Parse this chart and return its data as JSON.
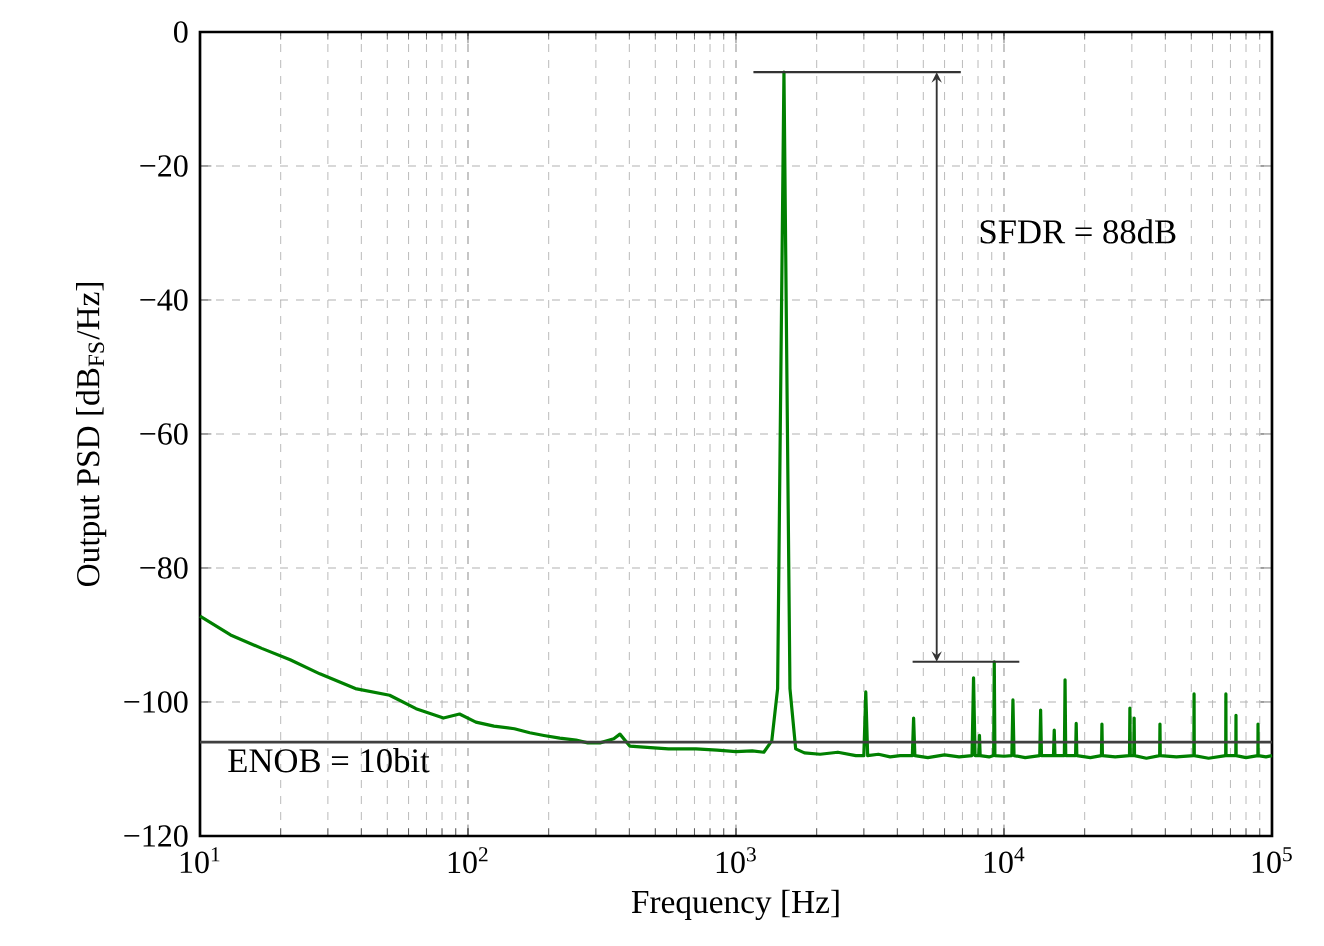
{
  "chart_data": {
    "type": "line",
    "xlabel": "Frequency [Hz]",
    "ylabel": "Output PSD [dB$_{FS}$/Hz]",
    "log": "x",
    "grid": true,
    "xlim": [
      10,
      100000
    ],
    "ylim": [
      -120,
      0
    ],
    "xticks": [
      {
        "value": 10,
        "label": "10$^{1}$"
      },
      {
        "value": 100,
        "label": "10$^{2}$"
      },
      {
        "value": 1000,
        "label": "10$^{3}$"
      },
      {
        "value": 10000,
        "label": "10$^{4}$"
      },
      {
        "value": 100000,
        "label": "10$^{5}$"
      }
    ],
    "yticks": [
      {
        "value": -120,
        "label": "−120"
      },
      {
        "value": -100,
        "label": "−100"
      },
      {
        "value": -80,
        "label": "−80"
      },
      {
        "value": -60,
        "label": "−60"
      },
      {
        "value": -40,
        "label": "−40"
      },
      {
        "value": -20,
        "label": "−20"
      },
      0
    ],
    "series": [
      {
        "color": "#008000",
        "x": [
          10,
          13,
          17,
          21.7,
          28,
          38,
          51,
          64,
          81,
          93,
          107,
          125,
          149,
          170,
          192,
          220,
          253,
          280,
          311,
          350,
          369,
          402,
          480,
          560,
          709,
          850,
          1000,
          1150,
          1270,
          1360,
          1430,
          1510,
          1590,
          1670,
          1800,
          2060,
          2400,
          2800,
          3000,
          3050,
          3100,
          3400,
          3760,
          4100,
          4550,
          4600,
          4650,
          5200,
          6000,
          6800,
          7600,
          7700,
          7800,
          8050,
          8100,
          8150,
          8800,
          9150,
          9200,
          9250,
          10000,
          10700,
          10800,
          10900,
          12000,
          13600,
          13700,
          13800,
          14500,
          15300,
          15400,
          15500,
          16800,
          16900,
          17000,
          18500,
          18600,
          18700,
          21000,
          23100,
          23200,
          23300,
          26000,
          29400,
          29500,
          29600,
          30500,
          30600,
          30700,
          34000,
          38100,
          38200,
          38300,
          44000,
          51100,
          51200,
          51300,
          58000,
          67200,
          67300,
          67400,
          73300,
          73400,
          73500,
          80000,
          88600,
          88700,
          88800,
          95000,
          100000
        ],
        "values": [
          -87.2,
          -90,
          -92,
          -93.7,
          -95.8,
          -98,
          -99,
          -101,
          -102.4,
          -101.8,
          -103,
          -103.6,
          -104,
          -104.6,
          -105,
          -105.4,
          -105.7,
          -106.1,
          -106.1,
          -105.5,
          -104.8,
          -106.6,
          -106.8,
          -107,
          -107,
          -107.2,
          -107.4,
          -107.3,
          -107.5,
          -105.8,
          -98,
          -6,
          -98,
          -107,
          -107.6,
          -107.8,
          -107.5,
          -108,
          -108,
          -98.5,
          -108,
          -107.8,
          -108.2,
          -108,
          -108,
          -102.4,
          -108,
          -108.3,
          -107.9,
          -108.2,
          -108,
          -96.4,
          -108,
          -108,
          -105,
          -108,
          -108.2,
          -108,
          -94,
          -108,
          -108.1,
          -108,
          -99.7,
          -108,
          -108.3,
          -108,
          -101.2,
          -108,
          -108,
          -108,
          -104.2,
          -108,
          -108,
          -96.7,
          -108,
          -108,
          -103.2,
          -108,
          -108.3,
          -108,
          -103.3,
          -108,
          -108.2,
          -108,
          -100.9,
          -108,
          -108,
          -102.4,
          -108,
          -108.4,
          -108,
          -103.3,
          -108,
          -108.2,
          -108,
          -98.8,
          -108,
          -108.4,
          -108,
          -98.8,
          -108,
          -108,
          -102,
          -108,
          -108.3,
          -108,
          -103.3,
          -108,
          -108.2,
          -108
        ]
      }
    ],
    "ref_lines": [
      {
        "axis": "y",
        "value": -106,
        "color": "#404040"
      },
      {
        "axis": "y",
        "value": -6,
        "color": "#333333"
      },
      {
        "axis": "y",
        "value": -94,
        "color": "#333333"
      }
    ],
    "annotations": [
      "SFDR = 88dB",
      "ENOB = 10bit"
    ]
  }
}
